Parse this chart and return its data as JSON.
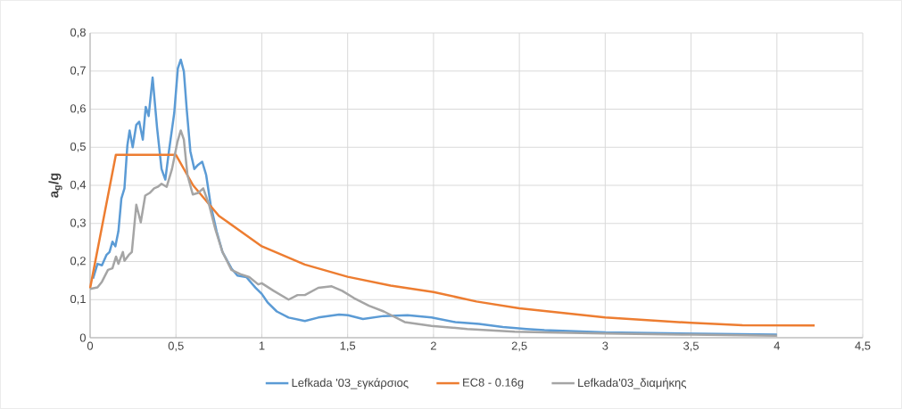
{
  "chart_data": {
    "type": "line",
    "ylabel": "a$_{g}$/g",
    "xlim": [
      0,
      4.5
    ],
    "ylim": [
      0,
      0.8
    ],
    "xticks": [
      0,
      {
        "value": 0.5,
        "label": "0,5"
      },
      1,
      {
        "value": 1.5,
        "label": "1,5"
      },
      2,
      {
        "value": 2.5,
        "label": "2,5"
      },
      3,
      {
        "value": 3.5,
        "label": "3,5"
      },
      4,
      {
        "value": 4.5,
        "label": "4,5"
      }
    ],
    "yticks": [
      0,
      {
        "value": 0.1,
        "label": "0,1"
      },
      {
        "value": 0.2,
        "label": "0,2"
      },
      {
        "value": 0.3,
        "label": "0,3"
      },
      {
        "value": 0.4,
        "label": "0,4"
      },
      {
        "value": 0.5,
        "label": "0,5"
      },
      {
        "value": 0.6,
        "label": "0,6"
      },
      {
        "value": 0.7,
        "label": "0,7"
      },
      {
        "value": 0.8,
        "label": "0,8"
      }
    ],
    "grid": true,
    "legend": "bottom",
    "marker": "none",
    "line_style": "solid",
    "series": [
      {
        "name": "Lefkada '03_εγκάρσιος",
        "color": "#5b9bd5",
        "x": [
          0.017,
          0.043,
          0.069,
          0.095,
          0.113,
          0.13,
          0.147,
          0.165,
          0.182,
          0.2,
          0.217,
          0.23,
          0.248,
          0.269,
          0.286,
          0.307,
          0.324,
          0.341,
          0.364,
          0.39,
          0.416,
          0.438,
          0.459,
          0.49,
          0.511,
          0.528,
          0.546,
          0.563,
          0.584,
          0.607,
          0.629,
          0.653,
          0.676,
          0.702,
          0.737,
          0.771,
          0.823,
          0.858,
          0.91,
          0.962,
          1.0,
          1.035,
          1.087,
          1.156,
          1.251,
          1.329,
          1.45,
          1.502,
          1.589,
          1.71,
          1.849,
          1.988,
          2.127,
          2.265,
          2.404,
          2.542,
          2.646,
          3.0,
          3.5,
          4.0
        ],
        "values": [
          0.155,
          0.194,
          0.19,
          0.217,
          0.225,
          0.252,
          0.24,
          0.28,
          0.365,
          0.392,
          0.505,
          0.544,
          0.5,
          0.559,
          0.567,
          0.52,
          0.606,
          0.582,
          0.683,
          0.551,
          0.443,
          0.415,
          0.489,
          0.59,
          0.707,
          0.73,
          0.699,
          0.598,
          0.489,
          0.443,
          0.454,
          0.462,
          0.427,
          0.349,
          0.279,
          0.225,
          0.182,
          0.163,
          0.159,
          0.132,
          0.115,
          0.092,
          0.069,
          0.053,
          0.044,
          0.053,
          0.061,
          0.059,
          0.049,
          0.057,
          0.059,
          0.053,
          0.041,
          0.036,
          0.028,
          0.023,
          0.02,
          0.014,
          0.011,
          0.008
        ]
      },
      {
        "name": "EC8 - 0.16g",
        "color": "#ed7d31",
        "x": [
          0,
          0.15,
          0.5,
          0.6,
          0.75,
          1.0,
          1.25,
          1.5,
          1.75,
          2.0,
          2.25,
          2.5,
          3.0,
          3.5,
          3.8,
          4.22
        ],
        "values": [
          0.13,
          0.48,
          0.48,
          0.4,
          0.32,
          0.24,
          0.192,
          0.16,
          0.137,
          0.12,
          0.095,
          0.077,
          0.053,
          0.039,
          0.033,
          0.032
        ]
      },
      {
        "name": "Lefkada'03_διαμήκης",
        "color": "#a5a5a5",
        "x": [
          0,
          0.043,
          0.069,
          0.104,
          0.13,
          0.151,
          0.165,
          0.191,
          0.2,
          0.225,
          0.243,
          0.269,
          0.295,
          0.321,
          0.347,
          0.373,
          0.394,
          0.416,
          0.446,
          0.477,
          0.508,
          0.528,
          0.546,
          0.567,
          0.598,
          0.629,
          0.659,
          0.693,
          0.728,
          0.771,
          0.823,
          0.875,
          0.927,
          0.979,
          1.0,
          1.069,
          1.156,
          1.208,
          1.251,
          1.329,
          1.407,
          1.468,
          1.537,
          1.624,
          1.71,
          1.832,
          1.988,
          2.196,
          2.473,
          2.646,
          3.0,
          3.5,
          4.0
        ],
        "values": [
          0.128,
          0.132,
          0.147,
          0.178,
          0.182,
          0.213,
          0.194,
          0.225,
          0.202,
          0.217,
          0.225,
          0.349,
          0.303,
          0.373,
          0.38,
          0.392,
          0.396,
          0.404,
          0.396,
          0.443,
          0.513,
          0.544,
          0.52,
          0.427,
          0.376,
          0.38,
          0.392,
          0.349,
          0.287,
          0.225,
          0.178,
          0.167,
          0.159,
          0.14,
          0.143,
          0.123,
          0.1,
          0.112,
          0.112,
          0.131,
          0.135,
          0.123,
          0.104,
          0.084,
          0.069,
          0.041,
          0.031,
          0.023,
          0.016,
          0.014,
          0.011,
          0.008,
          0.005
        ]
      }
    ]
  }
}
